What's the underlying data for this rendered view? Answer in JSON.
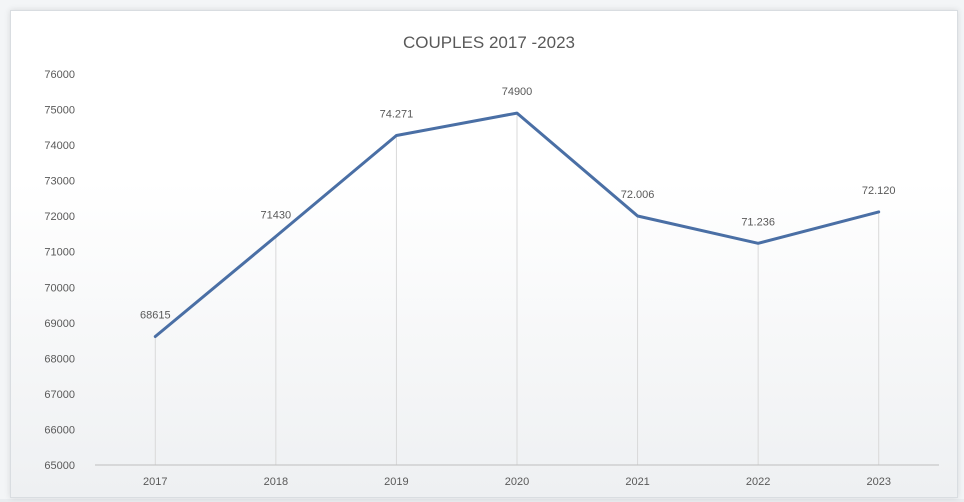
{
  "chart_data": {
    "type": "line",
    "title": "COUPLES  2017 -2023",
    "xlabel": "",
    "ylabel": "",
    "categories": [
      "2017",
      "2018",
      "2019",
      "2020",
      "2021",
      "2022",
      "2023"
    ],
    "series": [
      {
        "values": [
          68615,
          71430,
          74271,
          74900,
          72006,
          71236,
          72120
        ],
        "data_labels": [
          "68615",
          "71430",
          "74.271",
          "74900",
          "72.006",
          "71.236",
          "72.120"
        ]
      }
    ],
    "ylim": [
      65000,
      76000
    ],
    "yticks": [
      "65000",
      "66000",
      "67000",
      "68000",
      "69000",
      "70000",
      "71000",
      "72000",
      "73000",
      "74000",
      "75000",
      "76000"
    ],
    "grid": "vertical drop lines",
    "legend": "none",
    "colors": {
      "line": "#4a6fa5",
      "text": "#595959",
      "drop_line": "#d9d9d9",
      "axis": "#bfbfbf"
    }
  }
}
